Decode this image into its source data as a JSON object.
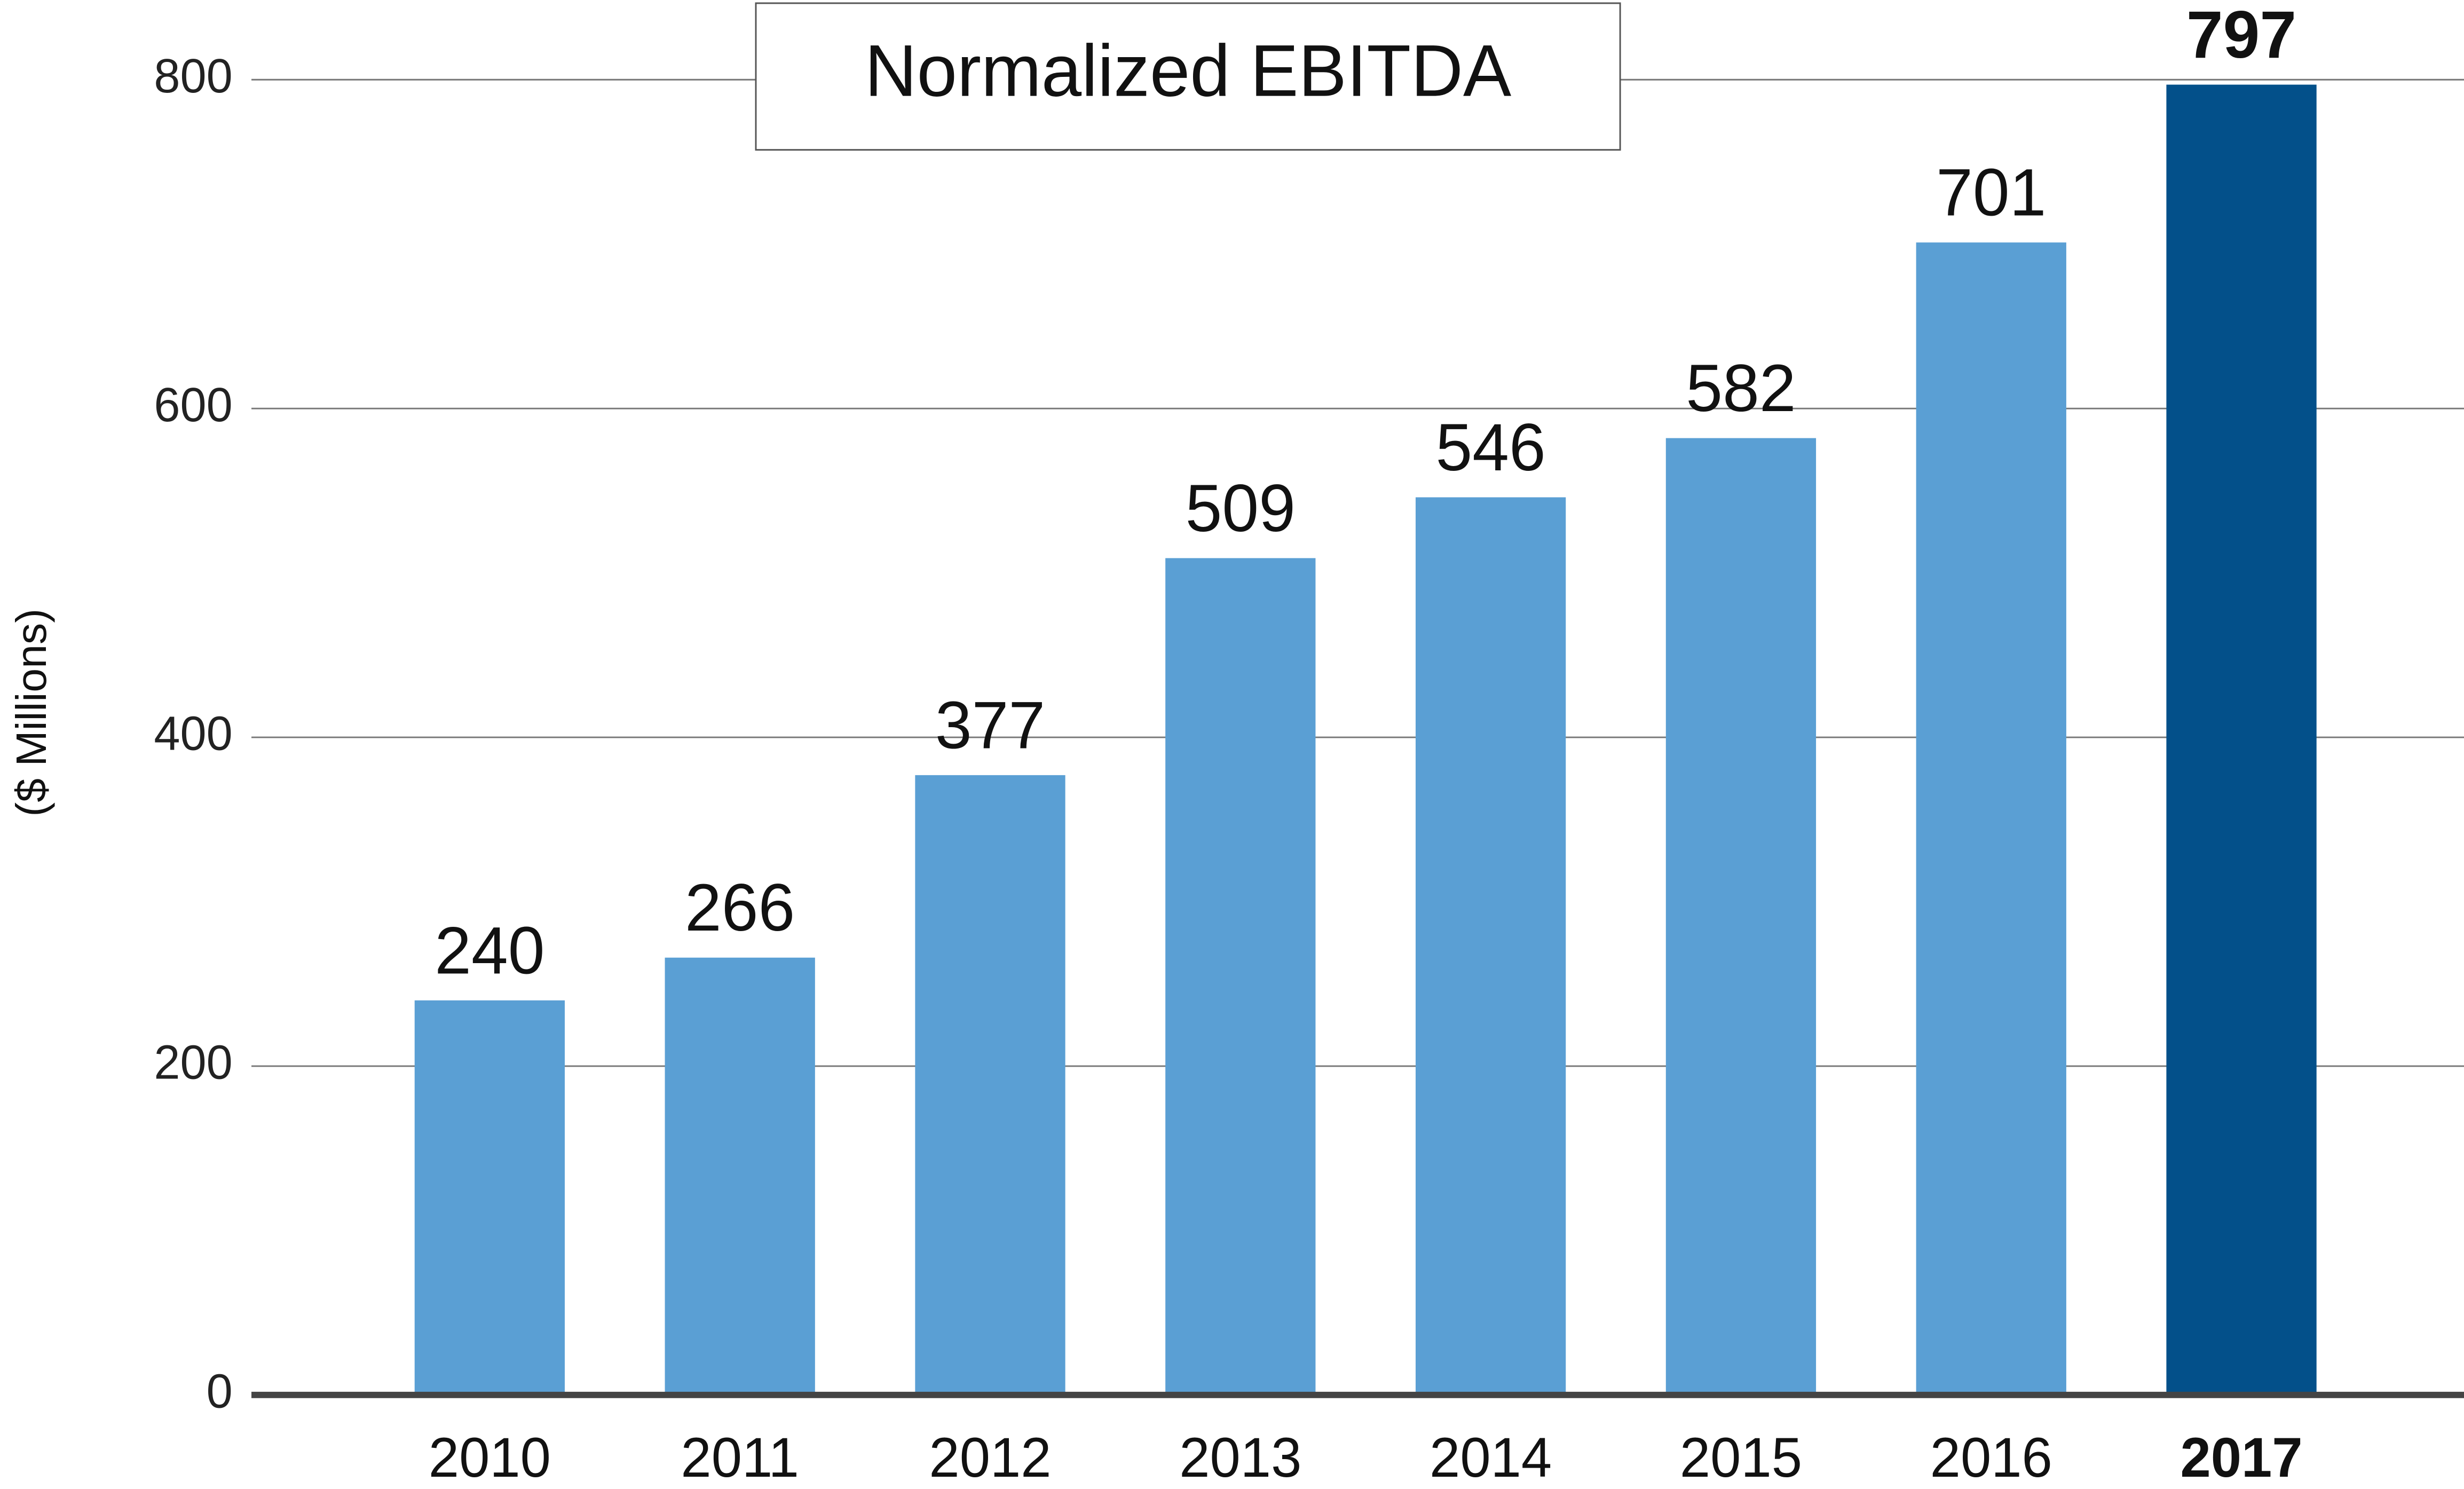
{
  "chart_data": {
    "type": "bar",
    "title": "Normalized EBITDA",
    "y_label": "($ Millions)",
    "categories": [
      "2010",
      "2011",
      "2012",
      "2013",
      "2014",
      "2015",
      "2016",
      "2017"
    ],
    "values": [
      240,
      266,
      377,
      509,
      546,
      582,
      701,
      797
    ],
    "colors": [
      "#5a9fd4",
      "#5a9fd4",
      "#5a9fd4",
      "#5a9fd4",
      "#5a9fd4",
      "#5a9fd4",
      "#5a9fd4",
      "#03508a"
    ],
    "highlight_index": 7,
    "ylim": [
      0,
      800
    ],
    "yticks": [
      0,
      200,
      400,
      600,
      800
    ],
    "grid": true
  }
}
